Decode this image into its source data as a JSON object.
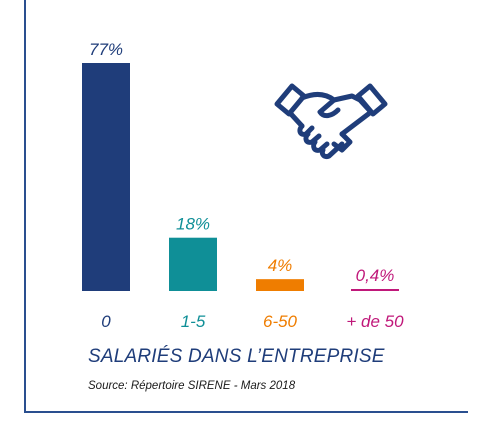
{
  "chart_data": {
    "type": "bar",
    "title": "SALARIÉS DANS L’ENTREPRISE",
    "source": "Source: Répertoire SIRENE - Mars 2018",
    "categories": [
      "0",
      "1-5",
      "6-50",
      "+ de 50"
    ],
    "values": [
      77,
      18,
      4,
      0.4
    ],
    "value_labels": [
      "77%",
      "18%",
      "4%",
      "0,4%"
    ],
    "colors": [
      "#1f3d7a",
      "#0f8f97",
      "#ef7d00",
      "#c0187a"
    ],
    "axes": false,
    "grid": false,
    "legend": "none"
  },
  "icons": {
    "illustration": "handshake-icon",
    "color": "#1f3d7a"
  }
}
